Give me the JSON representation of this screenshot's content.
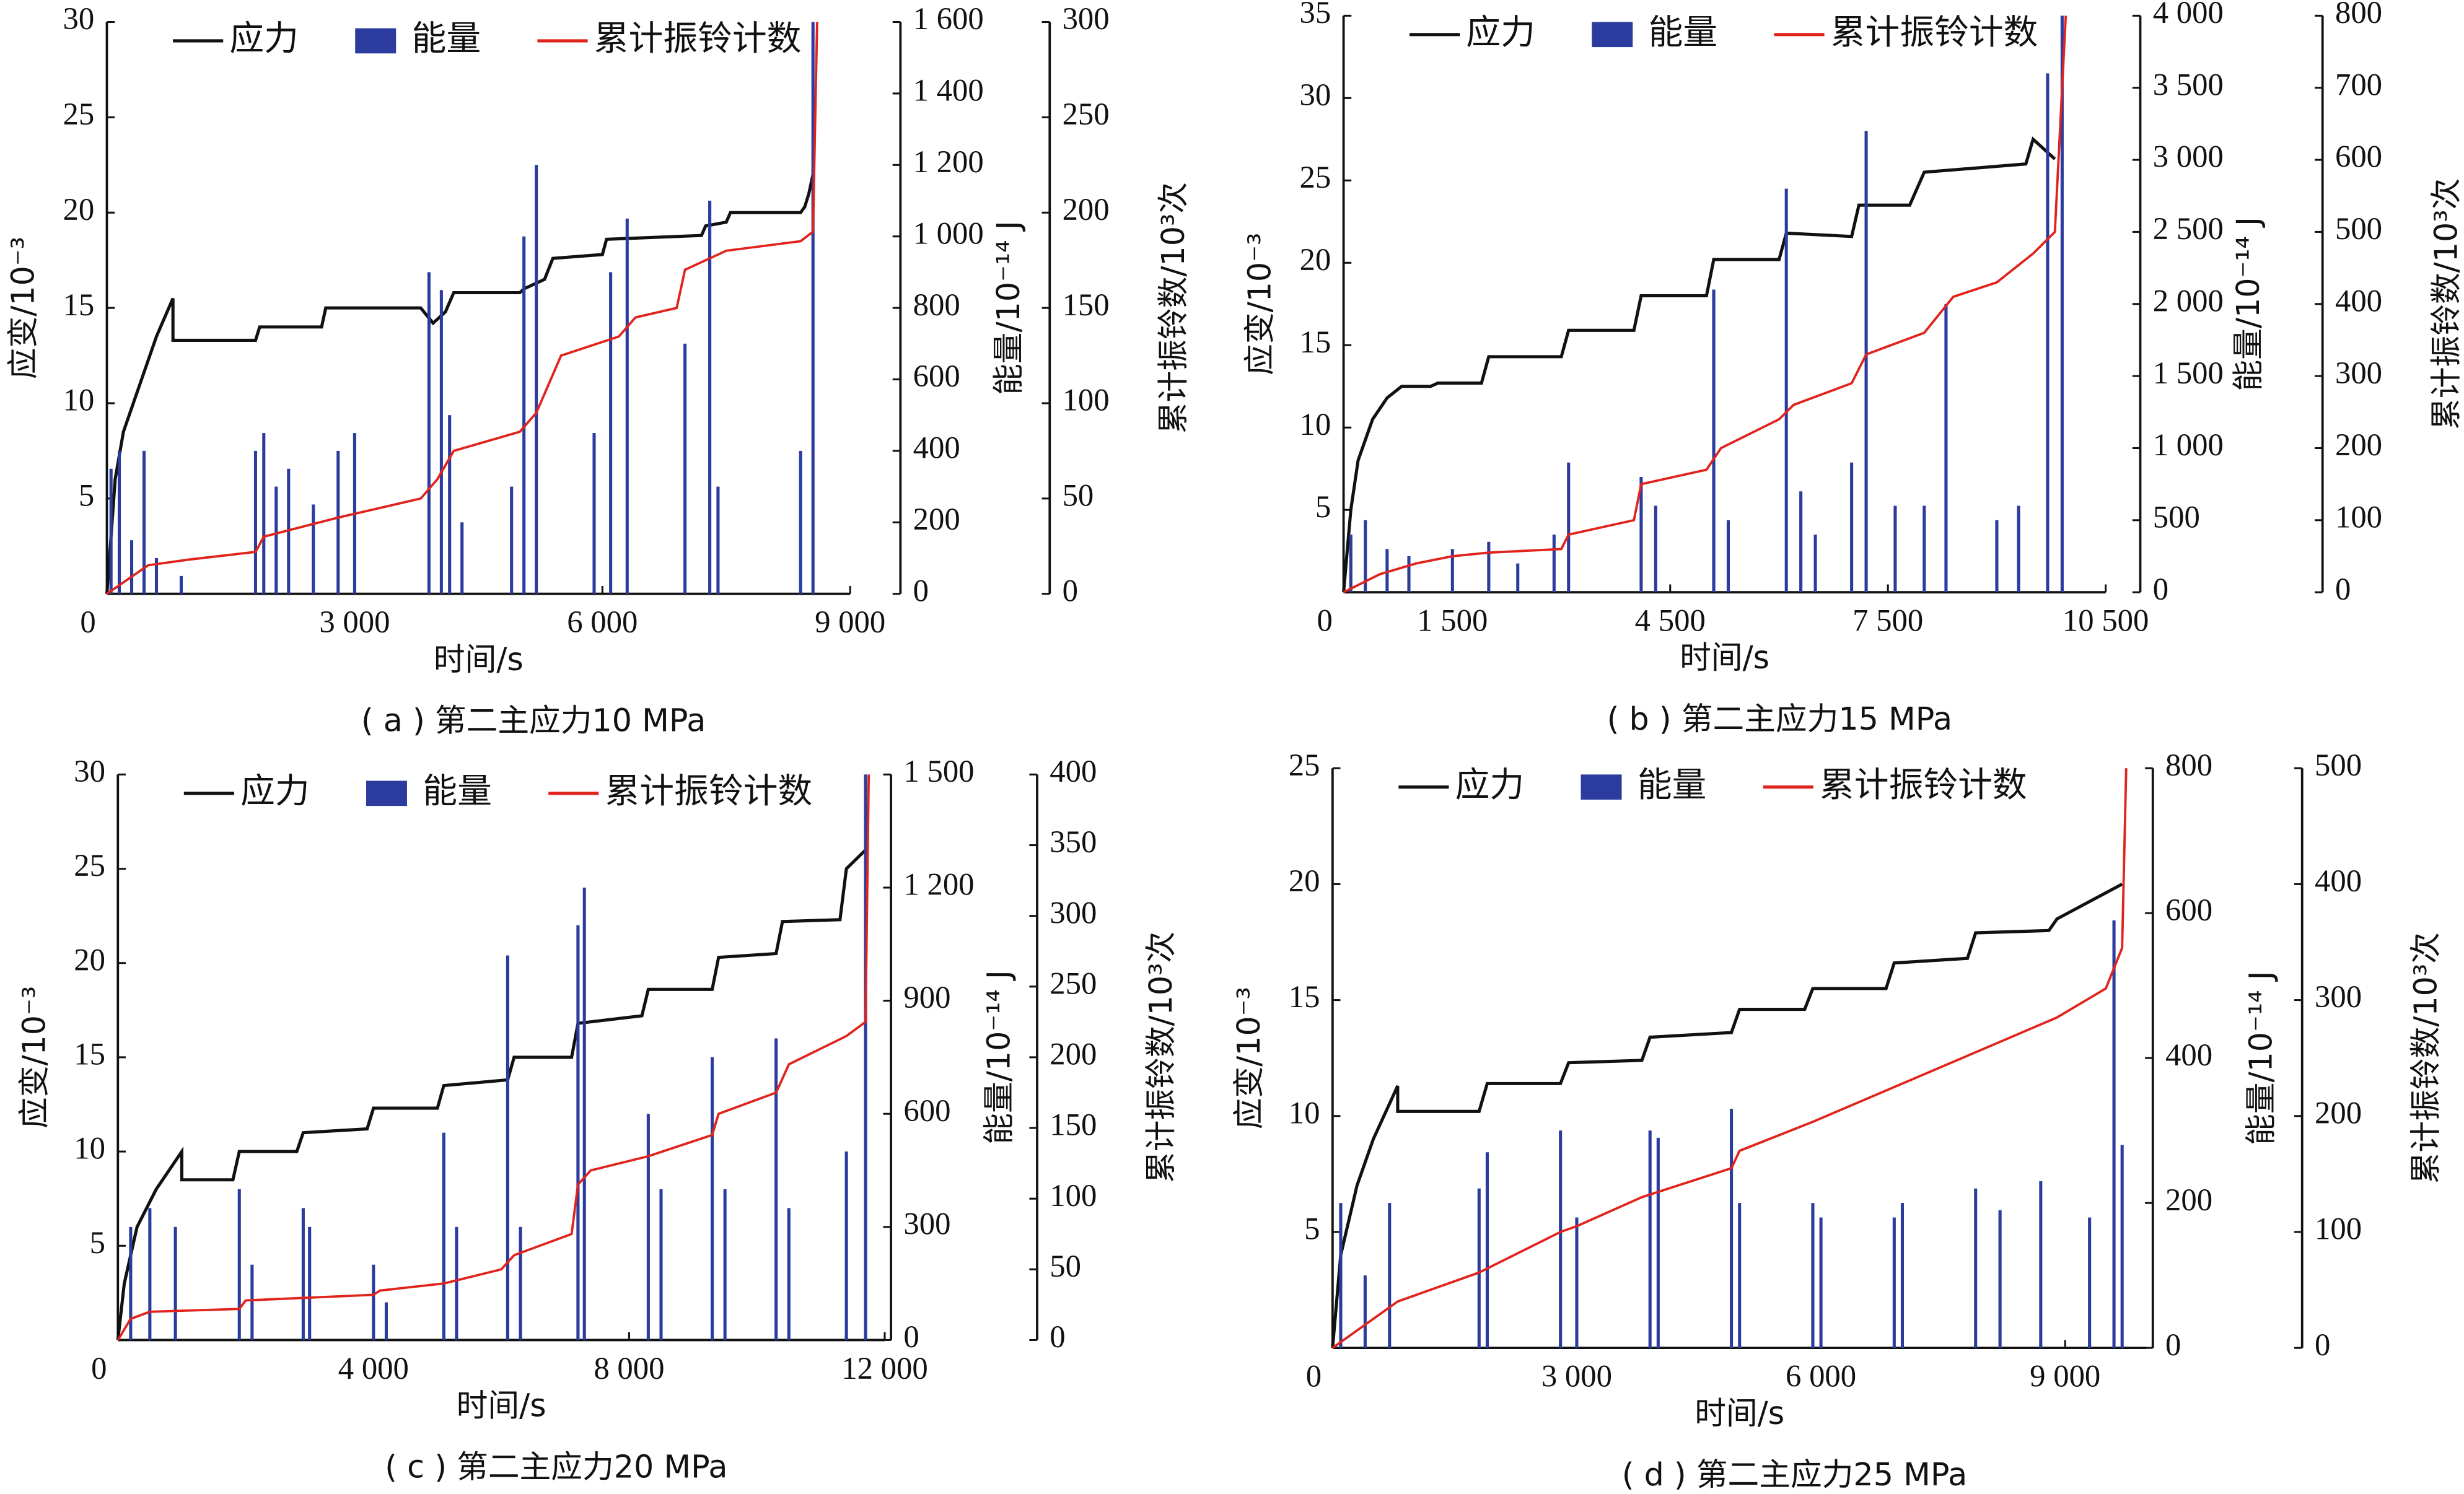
{
  "chart_data": [
    {
      "type": "combo",
      "caption": "( a ) 第二主应力10 MPa",
      "xlabel": "时间/s",
      "ylabel": "应变/10⁻³",
      "y2label": "能量/10⁻¹⁴ J",
      "y3label": "累计振铃数/10³次",
      "xlim": [
        0,
        9000
      ],
      "xticks": [
        0,
        {
          "value": 3000,
          "label": "3 000"
        },
        {
          "value": 6000,
          "label": "6 000"
        },
        {
          "value": 9000,
          "label": "9 000"
        }
      ],
      "ylim": [
        0,
        30
      ],
      "yticks": [
        5,
        10,
        15,
        20,
        25,
        30
      ],
      "y2lim": [
        0,
        1600
      ],
      "y2ticks": [
        0,
        200,
        400,
        600,
        800,
        {
          "value": 1000,
          "label": "1 000"
        },
        {
          "value": 1200,
          "label": "1 200"
        },
        {
          "value": 1400,
          "label": "1 400"
        },
        {
          "value": 1600,
          "label": "1 600"
        }
      ],
      "y3lim": [
        0,
        300
      ],
      "y3ticks": [
        0,
        50,
        100,
        150,
        200,
        250,
        300
      ],
      "series": [
        {
          "name": "应力",
          "kind": "line",
          "axis": "y",
          "color": "#111111",
          "x": [
            0,
            100,
            200,
            400,
            600,
            800,
            800,
            1800,
            1850,
            2600,
            2650,
            3800,
            3950,
            4100,
            4200,
            5000,
            5050,
            5300,
            5400,
            6000,
            6050,
            7200,
            7250,
            7500,
            7550,
            8400,
            8450,
            8500,
            8550
          ],
          "values": [
            0,
            6,
            8.5,
            11,
            13.5,
            15.5,
            13.3,
            13.3,
            14,
            14,
            15,
            15,
            14.2,
            14.8,
            15.8,
            15.8,
            16,
            16.5,
            17.6,
            17.8,
            18.6,
            18.8,
            19.3,
            19.5,
            20,
            20,
            20.3,
            21,
            22
          ]
        },
        {
          "name": "能量",
          "kind": "bar",
          "axis": "y2",
          "color": "#2b3b9e",
          "x": [
            50,
            150,
            300,
            450,
            600,
            900,
            1800,
            1900,
            2050,
            2200,
            2500,
            2800,
            3000,
            3900,
            4050,
            4150,
            4300,
            4900,
            5050,
            5200,
            5900,
            6100,
            6300,
            7000,
            7300,
            7400,
            8400,
            8550
          ],
          "values": [
            350,
            400,
            150,
            400,
            100,
            50,
            400,
            450,
            300,
            350,
            250,
            400,
            450,
            900,
            850,
            500,
            200,
            300,
            1000,
            1200,
            450,
            900,
            1050,
            700,
            1100,
            300,
            400,
            1600
          ]
        },
        {
          "name": "累计振铃计数",
          "kind": "line",
          "axis": "y3",
          "color": "#e0231c",
          "x": [
            0,
            500,
            1000,
            1800,
            1900,
            2800,
            3800,
            4000,
            4200,
            5000,
            5200,
            5400,
            5500,
            6200,
            6400,
            6900,
            7000,
            7500,
            8400,
            8550,
            8600
          ],
          "values": [
            0,
            15,
            18,
            22,
            30,
            40,
            50,
            60,
            75,
            85,
            95,
            115,
            125,
            135,
            145,
            150,
            170,
            180,
            185,
            190,
            300
          ]
        }
      ]
    },
    {
      "type": "combo",
      "caption": "( b ) 第二主应力15 MPa",
      "xlabel": "时间/s",
      "ylabel": "应变/10⁻³",
      "y2label": "能量/10⁻¹⁴ J",
      "y3label": "累计振铃数/10³次",
      "xlim": [
        0,
        10500
      ],
      "xticks": [
        0,
        {
          "value": 1500,
          "label": "1 500"
        },
        {
          "value": 4500,
          "label": "4 500"
        },
        {
          "value": 7500,
          "label": "7 500"
        },
        {
          "value": 10500,
          "label": "10 500"
        }
      ],
      "ylim": [
        0,
        35
      ],
      "yticks": [
        5,
        10,
        15,
        20,
        25,
        30,
        35
      ],
      "y2lim": [
        0,
        4000
      ],
      "y2ticks": [
        0,
        500,
        {
          "value": 1000,
          "label": "1 000"
        },
        {
          "value": 1500,
          "label": "1 500"
        },
        {
          "value": 2000,
          "label": "2 000"
        },
        {
          "value": 2500,
          "label": "2 500"
        },
        {
          "value": 3000,
          "label": "3 000"
        },
        {
          "value": 3500,
          "label": "3 500"
        },
        {
          "value": 4000,
          "label": "4 000"
        }
      ],
      "y3lim": [
        0,
        800
      ],
      "y3ticks": [
        0,
        100,
        200,
        300,
        400,
        500,
        600,
        700,
        800
      ],
      "series": [
        {
          "name": "应力",
          "kind": "line",
          "axis": "y",
          "color": "#111111",
          "x": [
            0,
            100,
            200,
            400,
            600,
            800,
            1200,
            1300,
            1900,
            2000,
            3000,
            3100,
            4000,
            4100,
            5000,
            5100,
            6000,
            6100,
            7000,
            7100,
            7800,
            8000,
            9400,
            9500,
            9800
          ],
          "values": [
            0,
            5,
            8,
            10.5,
            11.8,
            12.5,
            12.5,
            12.7,
            12.7,
            14.3,
            14.3,
            15.9,
            15.9,
            18,
            18,
            20.2,
            20.2,
            21.8,
            21.6,
            23.5,
            23.5,
            25.5,
            26,
            27.5,
            26.3
          ]
        },
        {
          "name": "能量",
          "kind": "bar",
          "axis": "y2",
          "color": "#2b3b9e",
          "x": [
            100,
            300,
            600,
            900,
            1500,
            2000,
            2400,
            2900,
            3100,
            4100,
            4300,
            5100,
            5300,
            6100,
            6300,
            6500,
            7000,
            7200,
            7600,
            8000,
            8300,
            9000,
            9300,
            9700,
            9900
          ],
          "values": [
            400,
            500,
            300,
            250,
            300,
            350,
            200,
            400,
            900,
            800,
            600,
            2100,
            500,
            2800,
            700,
            400,
            900,
            3200,
            600,
            600,
            2000,
            500,
            600,
            3600,
            4000
          ]
        },
        {
          "name": "累计振铃计数",
          "kind": "line",
          "axis": "y3",
          "color": "#e0231c",
          "x": [
            0,
            500,
            1000,
            1500,
            2000,
            3000,
            3100,
            4000,
            4100,
            5000,
            5200,
            6000,
            6200,
            7000,
            7200,
            8000,
            8400,
            9000,
            9500,
            9800,
            9950
          ],
          "values": [
            0,
            25,
            40,
            50,
            55,
            60,
            80,
            100,
            150,
            170,
            200,
            240,
            260,
            290,
            330,
            360,
            410,
            430,
            470,
            500,
            800
          ]
        }
      ]
    },
    {
      "type": "combo",
      "caption": "( c ) 第二主应力20 MPa",
      "xlabel": "时间/s",
      "ylabel": "应变/10⁻³",
      "y2label": "能量/10⁻¹⁴ J",
      "y3label": "累计振铃数/10³次",
      "xlim": [
        0,
        12000
      ],
      "xticks": [
        0,
        {
          "value": 4000,
          "label": "4 000"
        },
        {
          "value": 8000,
          "label": "8 000"
        },
        {
          "value": 12000,
          "label": "12 000"
        }
      ],
      "ylim": [
        0,
        30
      ],
      "yticks": [
        5,
        10,
        15,
        20,
        25,
        30
      ],
      "y2lim": [
        0,
        1500
      ],
      "y2ticks": [
        0,
        300,
        600,
        900,
        {
          "value": 1200,
          "label": "1 200"
        },
        {
          "value": 1500,
          "label": "1 500"
        }
      ],
      "y3lim": [
        0,
        400
      ],
      "y3ticks": [
        0,
        50,
        100,
        150,
        200,
        250,
        300,
        350,
        400
      ],
      "series": [
        {
          "name": "应力",
          "kind": "line",
          "axis": "y",
          "color": "#111111",
          "x": [
            0,
            100,
            300,
            600,
            1000,
            1000,
            1800,
            1900,
            2800,
            2900,
            3900,
            4000,
            5000,
            5100,
            6100,
            6200,
            7100,
            7200,
            8200,
            8300,
            9300,
            9400,
            10300,
            10400,
            11300,
            11400,
            11700
          ],
          "values": [
            0,
            3,
            6,
            8,
            10,
            8.5,
            8.5,
            10,
            10,
            11,
            11.2,
            12.3,
            12.3,
            13.5,
            13.8,
            15,
            15,
            16.8,
            17.2,
            18.6,
            18.6,
            20.3,
            20.5,
            22.2,
            22.3,
            25,
            26
          ]
        },
        {
          "name": "能量",
          "kind": "bar",
          "axis": "y2",
          "color": "#2b3b9e",
          "x": [
            200,
            500,
            900,
            1900,
            2100,
            2900,
            3000,
            4000,
            4200,
            5100,
            5300,
            6100,
            6300,
            7200,
            7300,
            8300,
            8500,
            9300,
            9500,
            10300,
            10500,
            11400,
            11700
          ],
          "values": [
            300,
            350,
            300,
            400,
            200,
            350,
            300,
            200,
            100,
            550,
            300,
            1020,
            300,
            1100,
            1200,
            600,
            400,
            750,
            400,
            800,
            350,
            500,
            1500
          ]
        },
        {
          "name": "累计振铃计数",
          "kind": "line",
          "axis": "y3",
          "color": "#e0231c",
          "x": [
            0,
            200,
            500,
            1900,
            2000,
            4000,
            4100,
            5100,
            6000,
            6200,
            7100,
            7200,
            7400,
            8300,
            9300,
            9400,
            10300,
            10500,
            11400,
            11700,
            11750
          ],
          "values": [
            0,
            15,
            20,
            22,
            28,
            32,
            35,
            40,
            50,
            60,
            75,
            110,
            120,
            130,
            145,
            160,
            175,
            195,
            215,
            225,
            400
          ]
        }
      ]
    },
    {
      "type": "combo",
      "caption": "( d ) 第二主应力25 MPa",
      "xlabel": "时间/s",
      "ylabel": "应变/10⁻³",
      "y2label": "能量/10⁻¹⁴ J",
      "y3label": "累计振铃数/10³次",
      "xlim": [
        0,
        10000
      ],
      "xticks": [
        0,
        {
          "value": 3000,
          "label": "3 000"
        },
        {
          "value": 6000,
          "label": "6 000"
        },
        {
          "value": 9000,
          "label": "9 000"
        }
      ],
      "ylim": [
        0,
        25
      ],
      "yticks": [
        5,
        10,
        15,
        20,
        25
      ],
      "y2lim": [
        0,
        800
      ],
      "y2ticks": [
        0,
        200,
        400,
        600,
        800
      ],
      "y3lim": [
        0,
        500
      ],
      "y3ticks": [
        0,
        100,
        200,
        300,
        400,
        500
      ],
      "series": [
        {
          "name": "应力",
          "kind": "line",
          "axis": "y",
          "color": "#111111",
          "x": [
            0,
            100,
            300,
            500,
            800,
            800,
            1800,
            1900,
            2800,
            2900,
            3800,
            3900,
            4900,
            5000,
            5800,
            5900,
            6800,
            6900,
            7800,
            7900,
            8800,
            8900,
            9700
          ],
          "values": [
            0,
            4,
            7,
            9,
            11.3,
            10.2,
            10.2,
            11.4,
            11.4,
            12.3,
            12.4,
            13.4,
            13.6,
            14.6,
            14.6,
            15.5,
            15.5,
            16.6,
            16.8,
            17.9,
            18,
            18.5,
            20
          ]
        },
        {
          "name": "能量",
          "kind": "bar",
          "axis": "y2",
          "color": "#2b3b9e",
          "x": [
            100,
            400,
            700,
            1800,
            1900,
            2800,
            3000,
            3900,
            4000,
            4900,
            5000,
            5900,
            6000,
            6900,
            7000,
            7900,
            8200,
            8700,
            9300,
            9600,
            9700
          ],
          "values": [
            200,
            100,
            200,
            220,
            270,
            300,
            180,
            300,
            290,
            330,
            200,
            200,
            180,
            180,
            200,
            220,
            190,
            230,
            180,
            590,
            280
          ]
        },
        {
          "name": "累计振铃计数",
          "kind": "line",
          "axis": "y3",
          "color": "#e0231c",
          "x": [
            0,
            800,
            1800,
            2800,
            3000,
            3800,
            4900,
            5000,
            5900,
            6900,
            7900,
            8900,
            9500,
            9700,
            9750
          ],
          "values": [
            0,
            40,
            65,
            100,
            105,
            130,
            155,
            170,
            195,
            225,
            255,
            285,
            310,
            345,
            500
          ]
        }
      ]
    }
  ]
}
